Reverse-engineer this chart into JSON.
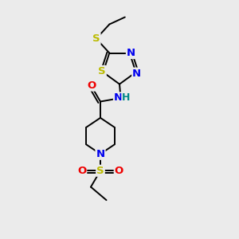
{
  "bg_color": "#ebebeb",
  "atom_colors": {
    "C": "#000000",
    "N": "#0000ee",
    "S": "#bbbb00",
    "O": "#ee0000",
    "H": "#008888"
  },
  "figsize": [
    3.0,
    3.0
  ],
  "dpi": 100,
  "bond_lw": 1.4,
  "font_size": 9.5
}
